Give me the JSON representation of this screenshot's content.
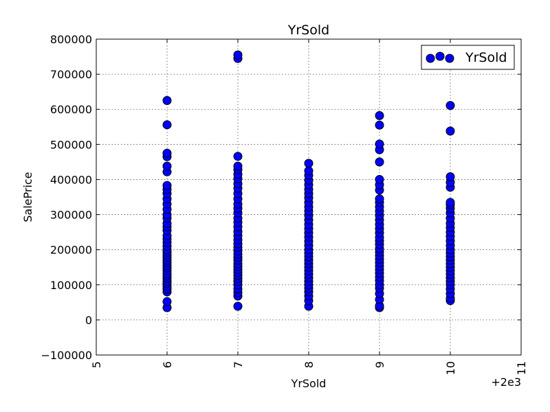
{
  "chart_data": {
    "type": "scatter",
    "title": "YrSold",
    "xlabel": "YrSold",
    "ylabel": "SalePrice",
    "x_offset_label": "+2e3",
    "xlim": [
      5,
      11
    ],
    "ylim": [
      -100000,
      800000
    ],
    "x_ticks": [
      "5",
      "6",
      "7",
      "8",
      "9",
      "10",
      "11"
    ],
    "y_ticks": [
      "−100000",
      "0",
      "100000",
      "200000",
      "300000",
      "400000",
      "500000",
      "600000",
      "700000",
      "800000"
    ],
    "x_tick_values": [
      5,
      6,
      7,
      8,
      9,
      10,
      11
    ],
    "y_tick_values": [
      -100000,
      0,
      100000,
      200000,
      300000,
      400000,
      500000,
      600000,
      700000,
      800000
    ],
    "x_tick_rotation": "vertical",
    "grid": true,
    "legend": {
      "position": "top-right",
      "entries": [
        "YrSold"
      ]
    },
    "marker_color": "#0000ff",
    "marker_edge": "#000000",
    "series": [
      {
        "name": "YrSold",
        "points": [
          {
            "x": 6,
            "y": 35000
          },
          {
            "x": 6,
            "y": 52000
          },
          {
            "x": 6,
            "y": 80000
          },
          {
            "x": 6,
            "y": 88000
          },
          {
            "x": 6,
            "y": 95000
          },
          {
            "x": 6,
            "y": 103000
          },
          {
            "x": 6,
            "y": 110000
          },
          {
            "x": 6,
            "y": 118000
          },
          {
            "x": 6,
            "y": 125000
          },
          {
            "x": 6,
            "y": 132000
          },
          {
            "x": 6,
            "y": 140000
          },
          {
            "x": 6,
            "y": 148000
          },
          {
            "x": 6,
            "y": 155000
          },
          {
            "x": 6,
            "y": 163000
          },
          {
            "x": 6,
            "y": 170000
          },
          {
            "x": 6,
            "y": 178000
          },
          {
            "x": 6,
            "y": 185000
          },
          {
            "x": 6,
            "y": 193000
          },
          {
            "x": 6,
            "y": 200000
          },
          {
            "x": 6,
            "y": 210000
          },
          {
            "x": 6,
            "y": 220000
          },
          {
            "x": 6,
            "y": 230000
          },
          {
            "x": 6,
            "y": 240000
          },
          {
            "x": 6,
            "y": 255000
          },
          {
            "x": 6,
            "y": 265000
          },
          {
            "x": 6,
            "y": 275000
          },
          {
            "x": 6,
            "y": 290000
          },
          {
            "x": 6,
            "y": 300000
          },
          {
            "x": 6,
            "y": 315000
          },
          {
            "x": 6,
            "y": 330000
          },
          {
            "x": 6,
            "y": 345000
          },
          {
            "x": 6,
            "y": 360000
          },
          {
            "x": 6,
            "y": 372000
          },
          {
            "x": 6,
            "y": 383000
          },
          {
            "x": 6,
            "y": 422000
          },
          {
            "x": 6,
            "y": 438000
          },
          {
            "x": 6,
            "y": 465000
          },
          {
            "x": 6,
            "y": 475000
          },
          {
            "x": 6,
            "y": 556000
          },
          {
            "x": 6,
            "y": 625000
          },
          {
            "x": 7,
            "y": 39000
          },
          {
            "x": 7,
            "y": 68000
          },
          {
            "x": 7,
            "y": 78000
          },
          {
            "x": 7,
            "y": 88000
          },
          {
            "x": 7,
            "y": 100000
          },
          {
            "x": 7,
            "y": 110000
          },
          {
            "x": 7,
            "y": 118000
          },
          {
            "x": 7,
            "y": 127000
          },
          {
            "x": 7,
            "y": 135000
          },
          {
            "x": 7,
            "y": 143000
          },
          {
            "x": 7,
            "y": 152000
          },
          {
            "x": 7,
            "y": 160000
          },
          {
            "x": 7,
            "y": 170000
          },
          {
            "x": 7,
            "y": 178000
          },
          {
            "x": 7,
            "y": 187000
          },
          {
            "x": 7,
            "y": 197000
          },
          {
            "x": 7,
            "y": 207000
          },
          {
            "x": 7,
            "y": 217000
          },
          {
            "x": 7,
            "y": 228000
          },
          {
            "x": 7,
            "y": 240000
          },
          {
            "x": 7,
            "y": 252000
          },
          {
            "x": 7,
            "y": 265000
          },
          {
            "x": 7,
            "y": 278000
          },
          {
            "x": 7,
            "y": 290000
          },
          {
            "x": 7,
            "y": 305000
          },
          {
            "x": 7,
            "y": 318000
          },
          {
            "x": 7,
            "y": 330000
          },
          {
            "x": 7,
            "y": 345000
          },
          {
            "x": 7,
            "y": 360000
          },
          {
            "x": 7,
            "y": 375000
          },
          {
            "x": 7,
            "y": 388000
          },
          {
            "x": 7,
            "y": 402000
          },
          {
            "x": 7,
            "y": 415000
          },
          {
            "x": 7,
            "y": 428000
          },
          {
            "x": 7,
            "y": 438000
          },
          {
            "x": 7,
            "y": 466000
          },
          {
            "x": 7,
            "y": 745000
          },
          {
            "x": 7,
            "y": 755000
          },
          {
            "x": 8,
            "y": 39000
          },
          {
            "x": 8,
            "y": 55000
          },
          {
            "x": 8,
            "y": 68000
          },
          {
            "x": 8,
            "y": 80000
          },
          {
            "x": 8,
            "y": 90000
          },
          {
            "x": 8,
            "y": 100000
          },
          {
            "x": 8,
            "y": 110000
          },
          {
            "x": 8,
            "y": 120000
          },
          {
            "x": 8,
            "y": 130000
          },
          {
            "x": 8,
            "y": 140000
          },
          {
            "x": 8,
            "y": 150000
          },
          {
            "x": 8,
            "y": 160000
          },
          {
            "x": 8,
            "y": 170000
          },
          {
            "x": 8,
            "y": 180000
          },
          {
            "x": 8,
            "y": 190000
          },
          {
            "x": 8,
            "y": 200000
          },
          {
            "x": 8,
            "y": 212000
          },
          {
            "x": 8,
            "y": 224000
          },
          {
            "x": 8,
            "y": 236000
          },
          {
            "x": 8,
            "y": 248000
          },
          {
            "x": 8,
            "y": 260000
          },
          {
            "x": 8,
            "y": 272000
          },
          {
            "x": 8,
            "y": 285000
          },
          {
            "x": 8,
            "y": 298000
          },
          {
            "x": 8,
            "y": 310000
          },
          {
            "x": 8,
            "y": 322000
          },
          {
            "x": 8,
            "y": 335000
          },
          {
            "x": 8,
            "y": 348000
          },
          {
            "x": 8,
            "y": 360000
          },
          {
            "x": 8,
            "y": 372000
          },
          {
            "x": 8,
            "y": 385000
          },
          {
            "x": 8,
            "y": 398000
          },
          {
            "x": 8,
            "y": 412000
          },
          {
            "x": 8,
            "y": 425000
          },
          {
            "x": 8,
            "y": 446000
          },
          {
            "x": 9,
            "y": 35000
          },
          {
            "x": 9,
            "y": 40000
          },
          {
            "x": 9,
            "y": 58000
          },
          {
            "x": 9,
            "y": 75000
          },
          {
            "x": 9,
            "y": 90000
          },
          {
            "x": 9,
            "y": 100000
          },
          {
            "x": 9,
            "y": 112000
          },
          {
            "x": 9,
            "y": 122000
          },
          {
            "x": 9,
            "y": 133000
          },
          {
            "x": 9,
            "y": 143000
          },
          {
            "x": 9,
            "y": 153000
          },
          {
            "x": 9,
            "y": 163000
          },
          {
            "x": 9,
            "y": 173000
          },
          {
            "x": 9,
            "y": 183000
          },
          {
            "x": 9,
            "y": 193000
          },
          {
            "x": 9,
            "y": 203000
          },
          {
            "x": 9,
            "y": 215000
          },
          {
            "x": 9,
            "y": 225000
          },
          {
            "x": 9,
            "y": 235000
          },
          {
            "x": 9,
            "y": 248000
          },
          {
            "x": 9,
            "y": 260000
          },
          {
            "x": 9,
            "y": 272000
          },
          {
            "x": 9,
            "y": 285000
          },
          {
            "x": 9,
            "y": 298000
          },
          {
            "x": 9,
            "y": 310000
          },
          {
            "x": 9,
            "y": 322000
          },
          {
            "x": 9,
            "y": 335000
          },
          {
            "x": 9,
            "y": 345000
          },
          {
            "x": 9,
            "y": 370000
          },
          {
            "x": 9,
            "y": 385000
          },
          {
            "x": 9,
            "y": 400000
          },
          {
            "x": 9,
            "y": 450000
          },
          {
            "x": 9,
            "y": 485000
          },
          {
            "x": 9,
            "y": 501000
          },
          {
            "x": 9,
            "y": 555000
          },
          {
            "x": 9,
            "y": 582000
          },
          {
            "x": 10,
            "y": 55000
          },
          {
            "x": 10,
            "y": 62000
          },
          {
            "x": 10,
            "y": 75000
          },
          {
            "x": 10,
            "y": 88000
          },
          {
            "x": 10,
            "y": 100000
          },
          {
            "x": 10,
            "y": 110000
          },
          {
            "x": 10,
            "y": 120000
          },
          {
            "x": 10,
            "y": 130000
          },
          {
            "x": 10,
            "y": 140000
          },
          {
            "x": 10,
            "y": 150000
          },
          {
            "x": 10,
            "y": 160000
          },
          {
            "x": 10,
            "y": 170000
          },
          {
            "x": 10,
            "y": 180000
          },
          {
            "x": 10,
            "y": 190000
          },
          {
            "x": 10,
            "y": 200000
          },
          {
            "x": 10,
            "y": 212000
          },
          {
            "x": 10,
            "y": 225000
          },
          {
            "x": 10,
            "y": 238000
          },
          {
            "x": 10,
            "y": 250000
          },
          {
            "x": 10,
            "y": 263000
          },
          {
            "x": 10,
            "y": 275000
          },
          {
            "x": 10,
            "y": 290000
          },
          {
            "x": 10,
            "y": 305000
          },
          {
            "x": 10,
            "y": 318000
          },
          {
            "x": 10,
            "y": 328000
          },
          {
            "x": 10,
            "y": 335000
          },
          {
            "x": 10,
            "y": 378000
          },
          {
            "x": 10,
            "y": 392000
          },
          {
            "x": 10,
            "y": 408000
          },
          {
            "x": 10,
            "y": 538000
          },
          {
            "x": 10,
            "y": 611000
          }
        ]
      }
    ]
  }
}
